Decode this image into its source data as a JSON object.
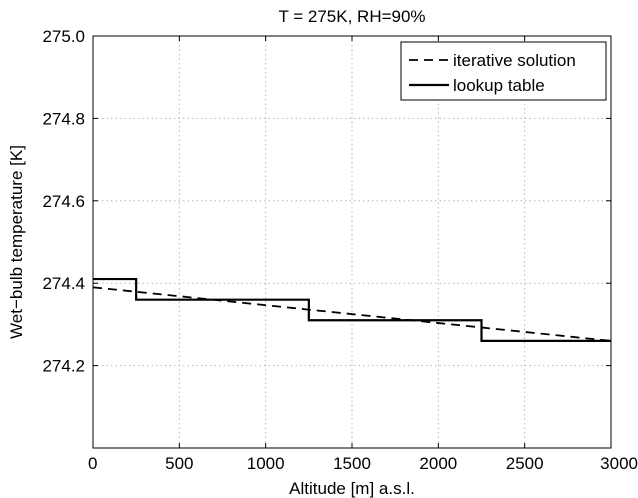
{
  "chart_data": {
    "type": "line",
    "title": "T = 275K, RH=90%",
    "xlabel": "Altitude [m] a.s.l.",
    "ylabel": "Wet−bulb temperature [K]",
    "xlim": [
      0,
      3000
    ],
    "ylim": [
      274.0,
      275.0
    ],
    "xticks": [
      0,
      500,
      1000,
      1500,
      2000,
      2500,
      3000
    ],
    "xtick_labels": [
      "0",
      "500",
      "1000",
      "1500",
      "2000",
      "2500",
      "3000"
    ],
    "yticks": [
      274.2,
      274.4,
      274.6,
      274.8,
      275.0
    ],
    "ytick_labels": [
      "274.2",
      "274.4",
      "274.6",
      "274.8",
      "275.0"
    ],
    "grid": true,
    "legend_position": "top-right",
    "series": [
      {
        "name": "iterative solution",
        "style": "dashed",
        "color": "#000000",
        "x": [
          0,
          3000
        ],
        "y": [
          274.39,
          274.26
        ]
      },
      {
        "name": "lookup table",
        "style": "solid-step",
        "color": "#000000",
        "x": [
          0,
          250,
          250,
          1250,
          1250,
          2250,
          2250,
          3000
        ],
        "y": [
          274.41,
          274.41,
          274.36,
          274.36,
          274.31,
          274.31,
          274.26,
          274.26
        ]
      }
    ]
  }
}
